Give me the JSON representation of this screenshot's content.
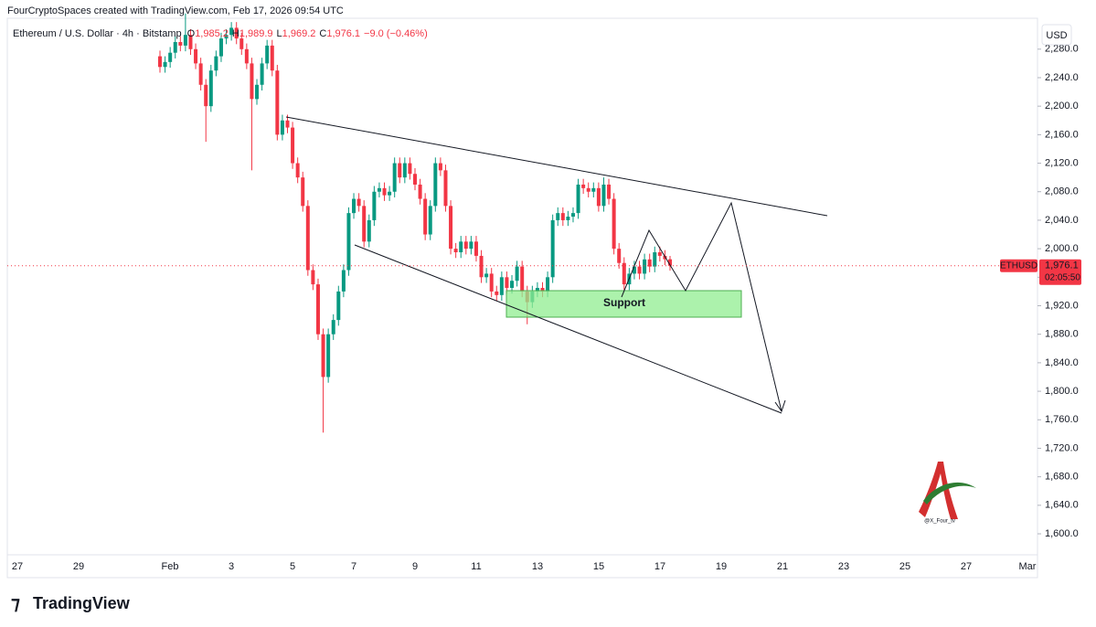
{
  "header": {
    "text": "FourCryptoSpaces created with TradingView.com, Feb 17, 2026 09:54 UTC"
  },
  "chart_data": {
    "type": "candlestick",
    "title": "Ethereum / U.S. Dollar · 4h · Bitstamp",
    "ohlc_legend": [
      {
        "key": "O",
        "value": "1,985.2"
      },
      {
        "key": "H",
        "value": "1,989.9"
      },
      {
        "key": "L",
        "value": "1,969.2"
      },
      {
        "key": "C",
        "value": "1,976.1"
      }
    ],
    "change": "−9.0 (−0.46%)",
    "up_color": "#089981",
    "down_color": "#f23645",
    "series": {
      "open": [
        2270,
        2255,
        2262,
        2275,
        2290,
        2285,
        2300,
        2280,
        2260,
        2230,
        2200,
        2250,
        2270,
        2295,
        2300,
        2310,
        2295,
        2280,
        2260,
        2210,
        2230,
        2260,
        2285,
        2250,
        2160,
        2180,
        2170,
        2120,
        2100,
        2060,
        1970,
        1950,
        1880,
        1820,
        1880,
        1900,
        1940,
        1970,
        2050,
        2070,
        2060,
        2010,
        2040,
        2080,
        2085,
        2075,
        2080,
        2120,
        2100,
        2120,
        2105,
        2090,
        2070,
        2020,
        2060,
        2120,
        2110,
        2060,
        2000,
        1995,
        2010,
        2000,
        2010,
        1990,
        1960,
        1965,
        1940,
        1935,
        1960,
        1945,
        1955,
        1975,
        1940,
        1925,
        1940,
        1945,
        1940,
        1960,
        2040,
        2050,
        2040,
        2045,
        2050,
        2090,
        2085,
        2080,
        2085,
        2060,
        2090,
        2070,
        2000,
        1980,
        1950,
        1965,
        1975,
        1965,
        1985,
        1975,
        1995,
        1990,
        1985.2
      ],
      "high": [
        2278,
        2270,
        2283,
        2298,
        2298,
        2330,
        2308,
        2288,
        2268,
        2238,
        2258,
        2278,
        2303,
        2308,
        2318,
        2318,
        2303,
        2288,
        2268,
        2238,
        2268,
        2293,
        2293,
        2258,
        2188,
        2188,
        2178,
        2128,
        2108,
        2068,
        1978,
        1958,
        1888,
        1888,
        1908,
        1948,
        1978,
        2058,
        2078,
        2078,
        2068,
        2048,
        2088,
        2093,
        2093,
        2088,
        2128,
        2128,
        2128,
        2128,
        2113,
        2098,
        2078,
        2068,
        2128,
        2128,
        2118,
        2068,
        2008,
        2018,
        2018,
        2018,
        2018,
        1998,
        1973,
        1973,
        1948,
        1968,
        1968,
        1963,
        1983,
        1983,
        1948,
        1948,
        1953,
        1953,
        1968,
        2048,
        2058,
        2058,
        2053,
        2058,
        2098,
        2098,
        2093,
        2093,
        2093,
        2100,
        2098,
        2078,
        2008,
        1988,
        1973,
        1983,
        1983,
        1993,
        1993,
        2003,
        2003,
        1998,
        1989.9
      ],
      "low": [
        2247,
        2247,
        2254,
        2267,
        2277,
        2277,
        2272,
        2252,
        2222,
        2150,
        2192,
        2242,
        2262,
        2287,
        2292,
        2287,
        2272,
        2252,
        2110,
        2202,
        2222,
        2252,
        2242,
        2152,
        2152,
        2162,
        2112,
        2092,
        2052,
        1962,
        1942,
        1872,
        1742,
        1812,
        1872,
        1892,
        1932,
        1962,
        2042,
        2052,
        2002,
        2002,
        2032,
        2072,
        2067,
        2067,
        2072,
        2092,
        2092,
        2097,
        2082,
        2062,
        2012,
        2012,
        2052,
        2102,
        2052,
        1992,
        1987,
        1987,
        1992,
        1992,
        1982,
        1952,
        1952,
        1932,
        1927,
        1927,
        1937,
        1937,
        1947,
        1932,
        1894,
        1917,
        1932,
        1932,
        1932,
        1952,
        2032,
        2032,
        2032,
        2037,
        2042,
        2077,
        2072,
        2072,
        2052,
        2052,
        2062,
        1992,
        1972,
        1942,
        1942,
        1957,
        1957,
        1957,
        1967,
        1967,
        1982,
        1977,
        1969.2
      ],
      "close": [
        2255,
        2262,
        2275,
        2290,
        2285,
        2300,
        2280,
        2260,
        2230,
        2200,
        2250,
        2270,
        2295,
        2300,
        2310,
        2295,
        2280,
        2260,
        2210,
        2230,
        2260,
        2285,
        2250,
        2160,
        2180,
        2170,
        2120,
        2100,
        2060,
        1970,
        1950,
        1880,
        1820,
        1880,
        1900,
        1940,
        1970,
        2050,
        2070,
        2060,
        2010,
        2040,
        2080,
        2085,
        2075,
        2080,
        2120,
        2100,
        2120,
        2105,
        2090,
        2070,
        2020,
        2060,
        2120,
        2110,
        2060,
        2000,
        1995,
        2010,
        2000,
        2010,
        1990,
        1960,
        1965,
        1940,
        1935,
        1960,
        1945,
        1955,
        1975,
        1940,
        1925,
        1940,
        1945,
        1940,
        1960,
        2040,
        2050,
        2040,
        2045,
        2050,
        2090,
        2085,
        2080,
        2085,
        2060,
        2090,
        2070,
        2000,
        1980,
        1950,
        1965,
        1975,
        1965,
        1985,
        1975,
        1995,
        1990,
        1985.2,
        1976.1
      ]
    },
    "ylim": [
      1574,
      2320
    ],
    "yticks": [
      {
        "value": 1600,
        "label": "1,600.0"
      },
      {
        "value": 1640,
        "label": "1,640.0"
      },
      {
        "value": 1680,
        "label": "1,680.0"
      },
      {
        "value": 1720,
        "label": "1,720.0"
      },
      {
        "value": 1760,
        "label": "1,760.0"
      },
      {
        "value": 1800,
        "label": "1,800.0"
      },
      {
        "value": 1840,
        "label": "1,840.0"
      },
      {
        "value": 1880,
        "label": "1,880.0"
      },
      {
        "value": 1920,
        "label": "1,920.0"
      },
      {
        "value": 1960,
        "label": "1,960.0"
      },
      {
        "value": 2000,
        "label": "2,000.0"
      },
      {
        "value": 2040,
        "label": "2,040.0"
      },
      {
        "value": 2080,
        "label": "2,080.0"
      },
      {
        "value": 2120,
        "label": "2,120.0"
      },
      {
        "value": 2160,
        "label": "2,160.0"
      },
      {
        "value": 2200,
        "label": "2,200.0"
      },
      {
        "value": 2240,
        "label": "2,240.0"
      },
      {
        "value": 2280,
        "label": "2,280.0"
      }
    ],
    "x_labels": [
      "27",
      "29",
      "Feb",
      "3",
      "5",
      "7",
      "9",
      "11",
      "13",
      "15",
      "17",
      "19",
      "21",
      "23",
      "25",
      "27",
      "Mar"
    ],
    "currency": "USD",
    "symbol": "ETHUSD",
    "last_price_label": "1,976.1",
    "countdown": "02:05:50",
    "annotation": "Support"
  },
  "watermark": "@X_Four_tv",
  "footer": {
    "brand": "TradingView"
  }
}
